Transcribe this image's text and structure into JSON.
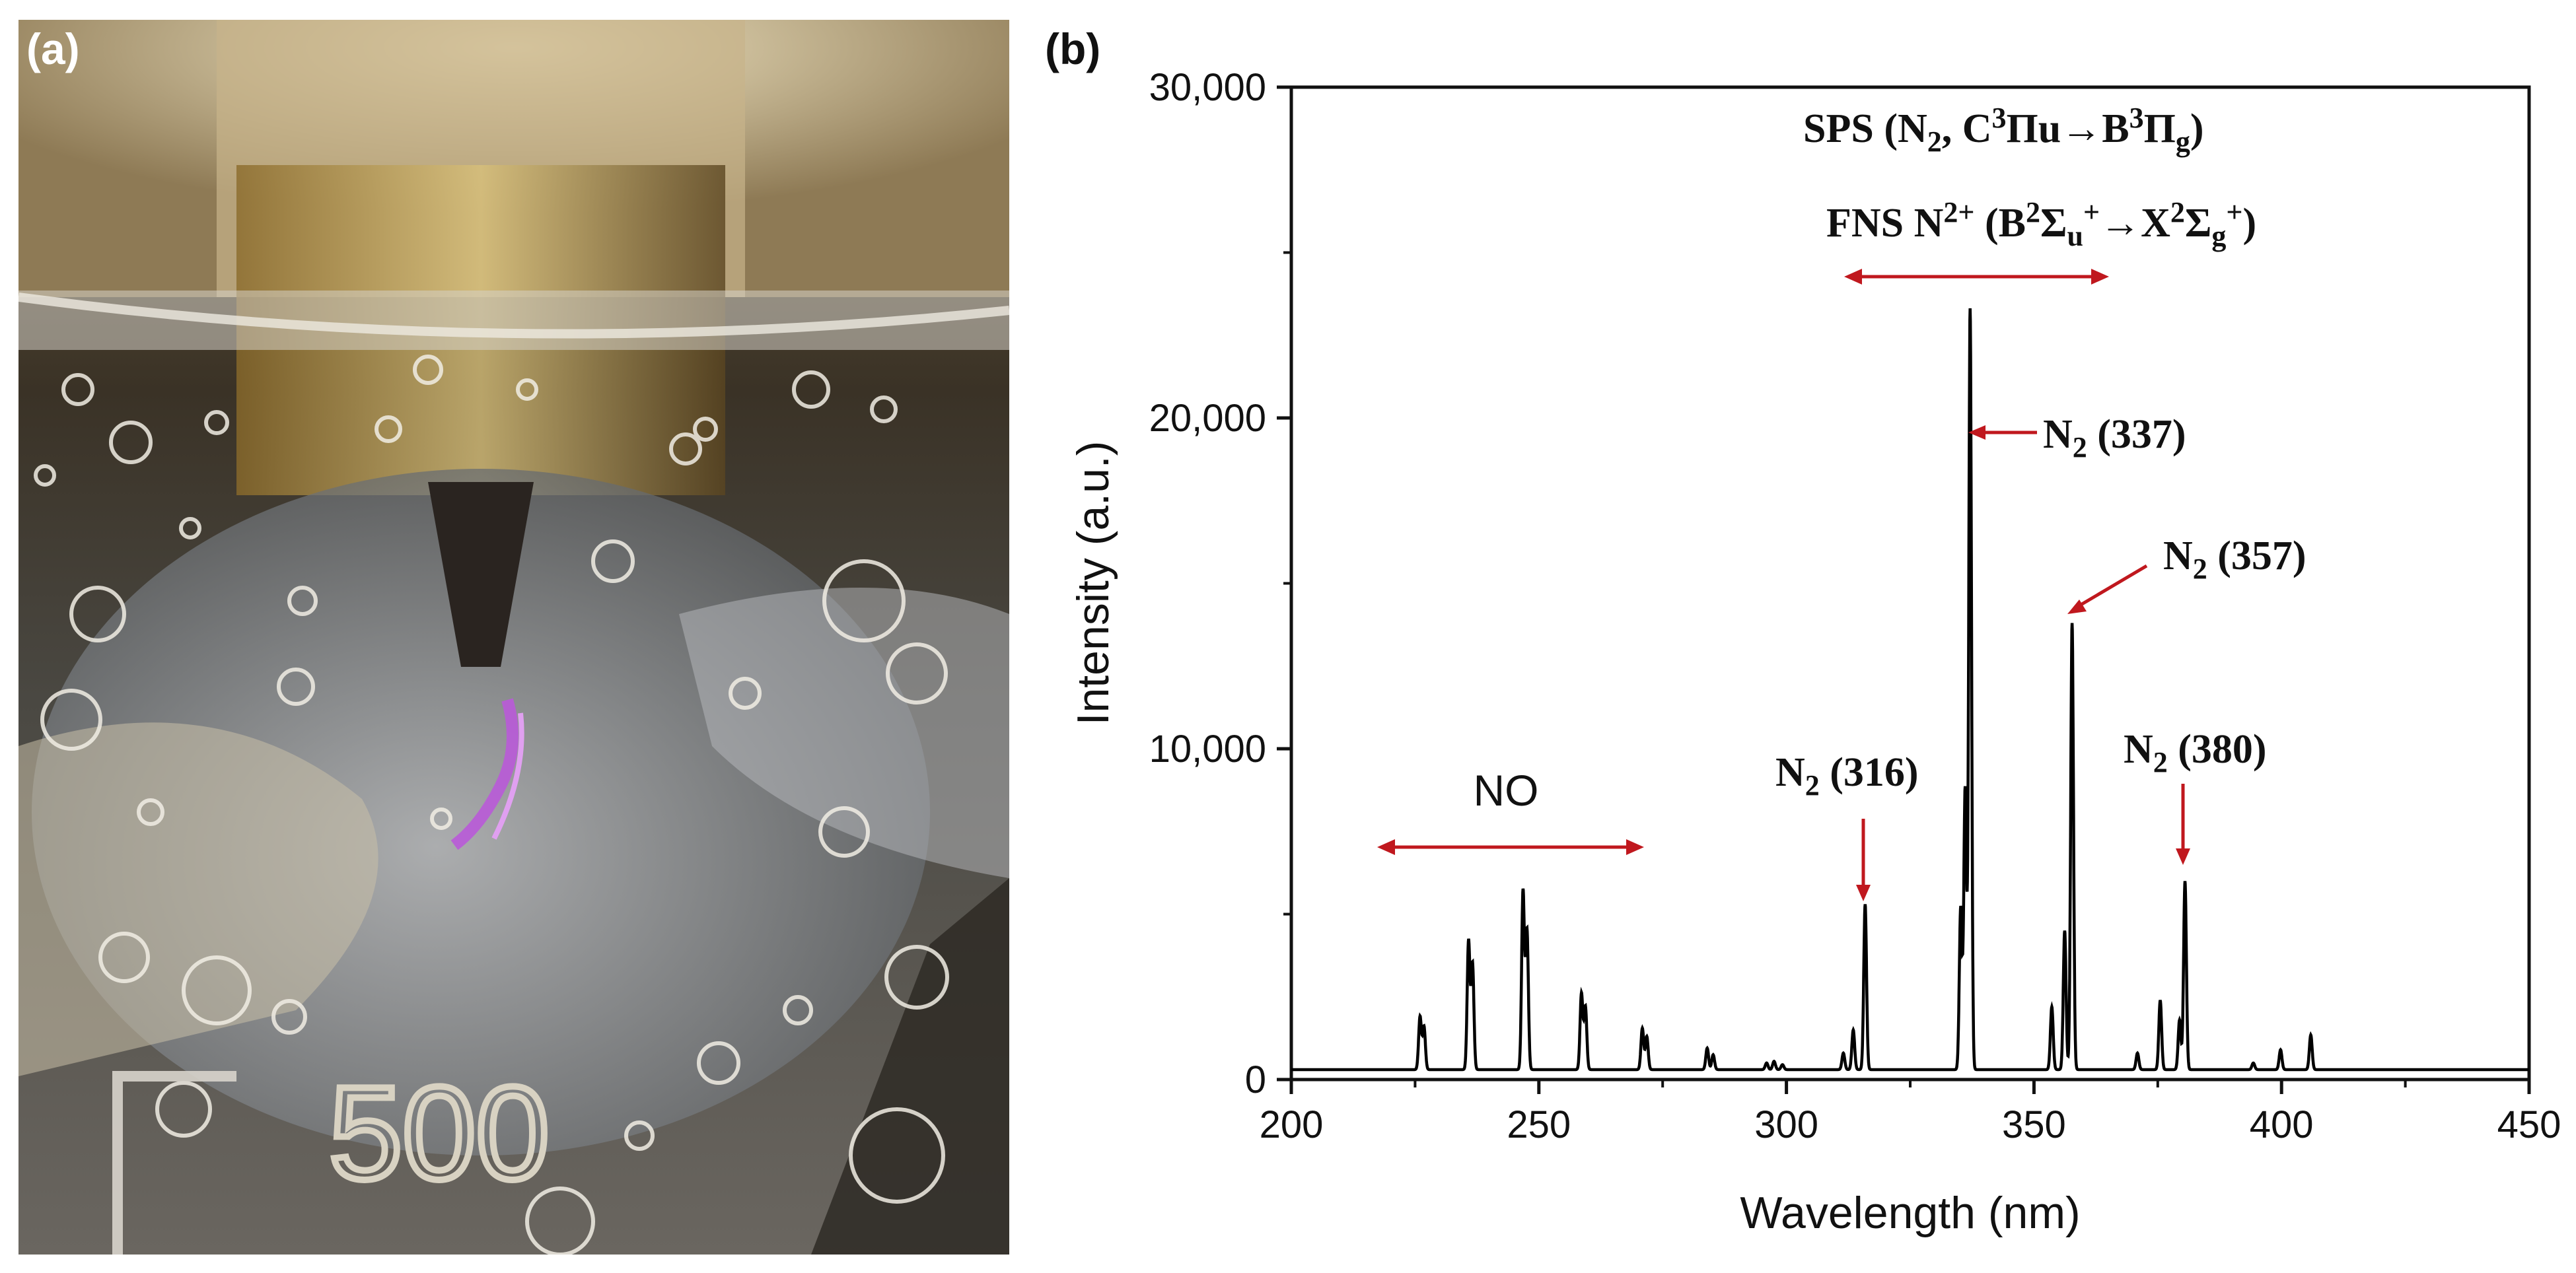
{
  "panels": {
    "a_label": "(a)",
    "b_label": "(b)"
  },
  "photo": {
    "vessel_marking": "500"
  },
  "colors": {
    "arrow": "#c0181e",
    "spectrum": "#000000"
  },
  "chart_data": {
    "type": "line",
    "xlabel": "Wavelength (nm)",
    "ylabel": "Intensity (a.u.)",
    "xlim": [
      200,
      450
    ],
    "ylim": [
      0,
      30000
    ],
    "xticks": [
      200,
      250,
      300,
      350,
      400,
      450
    ],
    "yticks": [
      0,
      10000,
      20000,
      30000
    ],
    "ytick_labels": [
      "0",
      "10,000",
      "20,000",
      "30,000"
    ],
    "baseline": 300,
    "peaks": [
      {
        "x": 226.0,
        "y": 1900
      },
      {
        "x": 226.8,
        "y": 1600
      },
      {
        "x": 235.8,
        "y": 4200
      },
      {
        "x": 236.6,
        "y": 3500
      },
      {
        "x": 246.8,
        "y": 5700
      },
      {
        "x": 247.6,
        "y": 4500
      },
      {
        "x": 258.6,
        "y": 2600
      },
      {
        "x": 259.4,
        "y": 2200
      },
      {
        "x": 270.9,
        "y": 1550
      },
      {
        "x": 271.8,
        "y": 1300
      },
      {
        "x": 284.0,
        "y": 950
      },
      {
        "x": 285.2,
        "y": 750
      },
      {
        "x": 296.0,
        "y": 500
      },
      {
        "x": 297.5,
        "y": 550
      },
      {
        "x": 299.2,
        "y": 450
      },
      {
        "x": 311.5,
        "y": 800
      },
      {
        "x": 313.5,
        "y": 1500
      },
      {
        "x": 315.9,
        "y": 5300
      },
      {
        "x": 335.2,
        "y": 5200
      },
      {
        "x": 336.1,
        "y": 8800
      },
      {
        "x": 337.1,
        "y": 23300
      },
      {
        "x": 353.6,
        "y": 2200
      },
      {
        "x": 356.2,
        "y": 4500
      },
      {
        "x": 357.7,
        "y": 13800
      },
      {
        "x": 370.9,
        "y": 800
      },
      {
        "x": 375.5,
        "y": 2400
      },
      {
        "x": 379.4,
        "y": 1800
      },
      {
        "x": 380.5,
        "y": 6000
      },
      {
        "x": 394.3,
        "y": 500
      },
      {
        "x": 399.8,
        "y": 900
      },
      {
        "x": 405.9,
        "y": 1350
      }
    ],
    "annotations": {
      "no_label": "NO",
      "sps": {
        "text": "SPS (N",
        "sub1": "2",
        "mid": ", C",
        "sup1": "3",
        "mid2": "Πu→B",
        "sup2": "3",
        "mid3": "Π",
        "sub2": "g",
        "end": ")"
      },
      "fns": {
        "text": "FNS N",
        "sup1": "2+",
        "mid": " (B",
        "sup2": "2",
        "mid2": "Σ",
        "sub1": "u",
        "sup3": "+",
        "mid3": "→X",
        "sup4": "2",
        "mid4": "Σ",
        "sub2": "g",
        "sup5": "+",
        "end": ")"
      },
      "n2_337": {
        "pre": "N",
        "sub": "2",
        "post": " (337)"
      },
      "n2_357": {
        "pre": "N",
        "sub": "2",
        "post": " (357)"
      },
      "n2_316": {
        "pre": "N",
        "sub": "2",
        "post": " (316)"
      },
      "n2_380": {
        "pre": "N",
        "sub": "2",
        "post": " (380)"
      }
    }
  }
}
